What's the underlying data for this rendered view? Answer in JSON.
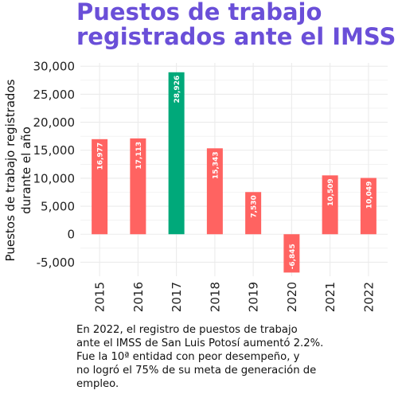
{
  "chart_data": {
    "type": "bar",
    "title": [
      "Puestos de trabajo",
      "registrados ante el IMSS"
    ],
    "ylabel": [
      "Puestos de trabajo registrados",
      "durante el año"
    ],
    "xlabel": "",
    "categories": [
      "2015",
      "2016",
      "2017",
      "2018",
      "2019",
      "2020",
      "2021",
      "2022"
    ],
    "values": [
      16977,
      17113,
      28926,
      15343,
      7530,
      -6845,
      10509,
      10049
    ],
    "value_labels": [
      "16,977",
      "17,113",
      "28,926",
      "15,343",
      "7,530",
      "-6,845",
      "10,509",
      "10,049"
    ],
    "highlight_index": 2,
    "ylim": [
      -7500,
      30600
    ],
    "yticks": [
      -5000,
      0,
      5000,
      10000,
      15000,
      20000,
      25000,
      30000
    ],
    "ytick_labels": [
      "-5,000",
      "0",
      "5,000",
      "10,000",
      "15,000",
      "20,000",
      "25,000",
      "30,000"
    ],
    "grid": true,
    "legend": "none",
    "colors": {
      "bar": "#FF6361",
      "highlight": "#00A97A",
      "title": "#6A4FD8",
      "grid": "#EBEBEB"
    }
  },
  "caption": [
    "En 2022, el registro de puestos de trabajo",
    "ante el IMSS de San Luis Potosí aumentó 2.2%.",
    "Fue la 10ª entidad con peor desempeño, y",
    "no logró el 75% de su meta de generación de",
    "empleo."
  ]
}
